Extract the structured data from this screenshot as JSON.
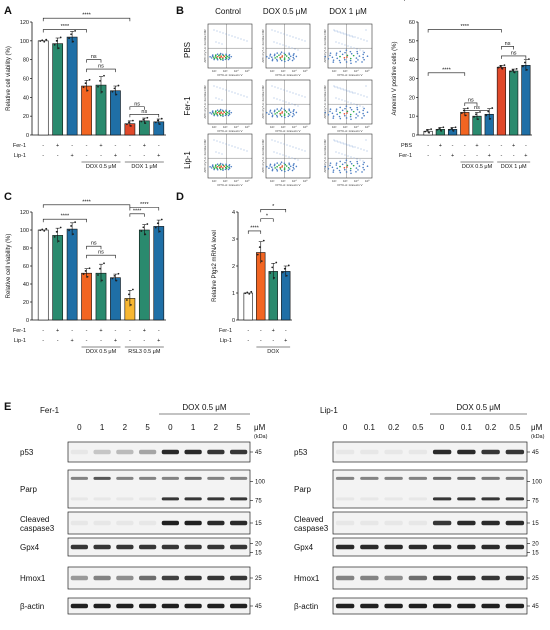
{
  "colors": {
    "white": "#ffffff",
    "green": "#2a8a6e",
    "blue": "#1f6fa6",
    "orange": "#f26522",
    "yellow": "#f7b733",
    "red": "#e0492a"
  },
  "panels": {
    "A": {
      "letter": "A",
      "row_labels": [
        "Fer-1",
        "Lip-1"
      ],
      "signs_fer": [
        "-",
        "+",
        "-",
        "-",
        "+",
        "-",
        "-",
        "+",
        "-"
      ],
      "signs_lip": [
        "-",
        "-",
        "+",
        "-",
        "-",
        "+",
        "-",
        "-",
        "+"
      ],
      "groups": [
        "DOX 0.5 μM",
        "DOX 1 μM"
      ],
      "sig": [
        "****",
        "****",
        "ns",
        "ns",
        "ns",
        "ns"
      ]
    },
    "B": {
      "letter": "B",
      "col_headers": [
        "Control",
        "DOX 0.5 μM",
        "DOX 1 μM"
      ],
      "row_labels": [
        "PBS",
        "Fer-1",
        "Lip-1"
      ],
      "flow_x": "FITC-A::Annexin V",
      "flow_y": "APC-Cy7-A::Zombie NIR",
      "flow_ticks": [
        "10²",
        "10³",
        "10⁴",
        "10⁵"
      ],
      "bar_row_labels": [
        "Fer-1",
        "Lip-1"
      ],
      "signs_fer": [
        "-",
        "+",
        "-",
        "-",
        "+",
        "-",
        "-",
        "+",
        "-"
      ],
      "signs_lip": [
        "-",
        "-",
        "+",
        "-",
        "-",
        "+",
        "-",
        "-",
        "+"
      ],
      "groups": [
        "DOX 0.5 μM",
        "DOX 1 μM"
      ],
      "sig": [
        "****",
        "****",
        "ns",
        "ns",
        "ns",
        "ns"
      ]
    },
    "C": {
      "letter": "C",
      "row_labels": [
        "Fer-1",
        "Lip-1"
      ],
      "signs_fer": [
        "-",
        "+",
        "-",
        "-",
        "+",
        "-",
        "-",
        "+",
        "-"
      ],
      "signs_lip": [
        "-",
        "-",
        "+",
        "-",
        "-",
        "+",
        "-",
        "-",
        "+"
      ],
      "groups": [
        "DOX 0.5 μM",
        "RSL3 0.5 μM"
      ],
      "sig": [
        "****",
        "****",
        "****",
        "****",
        "ns",
        "ns"
      ]
    },
    "D": {
      "letter": "D",
      "row_labels": [
        "Fer-1",
        "Lip-1"
      ],
      "signs_fer": [
        "-",
        "-",
        "+",
        "-"
      ],
      "signs_lip": [
        "-",
        "-",
        "-",
        "+"
      ],
      "group": "DOX",
      "sig": [
        "****",
        "*",
        "*"
      ]
    },
    "E": {
      "letter": "E",
      "left": {
        "treat": "Fer-1",
        "conc": [
          "0",
          "1",
          "2",
          "5",
          "0",
          "1",
          "2",
          "5"
        ],
        "unit": "μM",
        "dox": "DOX 0.5 μM"
      },
      "right": {
        "treat": "Lip-1",
        "conc": [
          "0",
          "0.1",
          "0.2",
          "0.5",
          "0",
          "0.1",
          "0.2",
          "0.5"
        ],
        "unit": "μM",
        "dox": "DOX 0.5 μM"
      },
      "kda": "(kDa)",
      "proteins": [
        {
          "name": "p53",
          "markers": [
            "45"
          ]
        },
        {
          "name": "Parp",
          "markers": [
            "100",
            "75"
          ]
        },
        {
          "name": "Cleaved",
          "name2": "caspase3",
          "markers": [
            "15"
          ]
        },
        {
          "name": "Gpx4",
          "markers": [
            "20",
            "15"
          ]
        },
        {
          "name": "Hmox1",
          "markers": [
            "25"
          ]
        },
        {
          "name": "β-actin",
          "markers": [
            "45"
          ]
        }
      ]
    }
  },
  "chart_data": [
    {
      "type": "bar",
      "panel": "A",
      "ylabel": "Relative cell viability (%)",
      "ylim": [
        0,
        120
      ],
      "yticks": [
        0,
        20,
        40,
        60,
        80,
        100,
        120
      ],
      "categories": [
        "Ctrl",
        "Fer-1",
        "Lip-1",
        "DOX0.5",
        "DOX0.5+Fer-1",
        "DOX0.5+Lip-1",
        "DOX1",
        "DOX1+Fer-1",
        "DOX1+Lip-1"
      ],
      "values": [
        100,
        97,
        104,
        52,
        53,
        47,
        12,
        15,
        14
      ],
      "errors": [
        0,
        6,
        6,
        6,
        9,
        5,
        3,
        3,
        3
      ],
      "colors": [
        "white",
        "green",
        "blue",
        "orange",
        "green",
        "blue",
        "red",
        "green",
        "blue"
      ]
    },
    {
      "type": "bar",
      "panel": "B",
      "ylabel": "Annexin V positive cells (%)",
      "ylim": [
        0,
        60
      ],
      "yticks": [
        0,
        10,
        20,
        30,
        40,
        50,
        60
      ],
      "categories": [
        "Ctrl",
        "Fer-1",
        "Lip-1",
        "DOX0.5",
        "DOX0.5+Fer-1",
        "DOX0.5+Lip-1",
        "DOX1",
        "DOX1+Fer-1",
        "DOX1+Lip-1"
      ],
      "values": [
        2,
        3,
        3,
        12,
        10,
        11,
        36,
        34,
        37
      ],
      "errors": [
        1,
        1,
        1,
        2,
        2,
        3,
        1,
        1,
        3
      ],
      "colors": [
        "white",
        "green",
        "blue",
        "orange",
        "green",
        "blue",
        "red",
        "green",
        "blue"
      ]
    },
    {
      "type": "bar",
      "panel": "C",
      "ylabel": "Relative cell viability (%)",
      "ylim": [
        0,
        120
      ],
      "yticks": [
        0,
        20,
        40,
        60,
        80,
        100,
        120
      ],
      "categories": [
        "Ctrl",
        "Fer-1",
        "Lip-1",
        "DOX0.5",
        "DOX0.5+Fer-1",
        "DOX0.5+Lip-1",
        "RSL3",
        "RSL3+Fer-1",
        "RSL3+Lip-1"
      ],
      "values": [
        100,
        94,
        101,
        52,
        52,
        47,
        24,
        100,
        104
      ],
      "errors": [
        0,
        8,
        7,
        5,
        10,
        4,
        9,
        6,
        7
      ],
      "colors": [
        "white",
        "green",
        "blue",
        "orange",
        "green",
        "blue",
        "yellow",
        "green",
        "blue"
      ]
    },
    {
      "type": "bar",
      "panel": "D",
      "ylabel": "Relative Ptgs2 mRNA level",
      "ylim": [
        0,
        4
      ],
      "yticks": [
        0,
        1,
        2,
        3,
        4
      ],
      "categories": [
        "Ctrl",
        "DOX",
        "DOX+Fer-1",
        "DOX+Lip-1"
      ],
      "values": [
        1,
        2.5,
        1.8,
        1.8
      ],
      "errors": [
        0,
        0.4,
        0.3,
        0.2
      ],
      "colors": [
        "white",
        "orange",
        "green",
        "blue"
      ]
    }
  ]
}
